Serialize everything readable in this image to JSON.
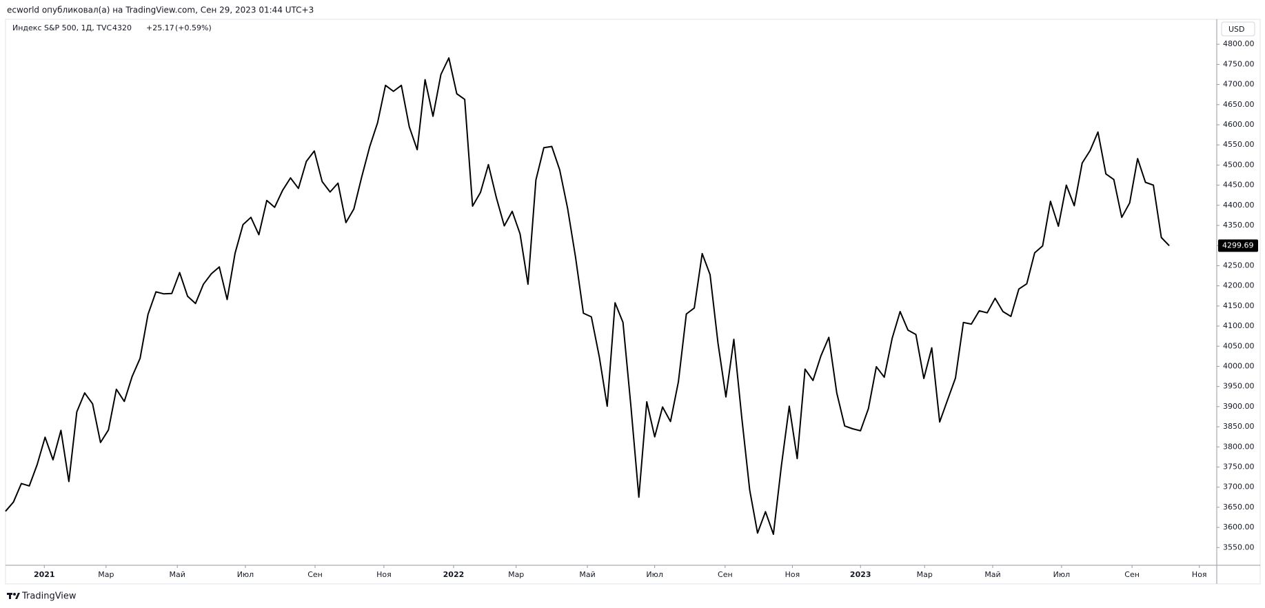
{
  "header": {
    "byline": "ecworld опубликовал(а) на TradingView.com, Сен 29, 2023 01:44 UTC+3"
  },
  "footer": {
    "brand": "TradingView"
  },
  "chart_data": {
    "type": "line",
    "currency": "USD",
    "change": "+25.17",
    "change_pct": "(+0.59%)",
    "series": [
      {
        "name": "Индекс S&P 500, 1Д, TVC",
        "color": "#000000",
        "values": [
          3640,
          3663,
          3709,
          3703,
          3756,
          3824,
          3768,
          3841,
          3714,
          3887,
          3934,
          3907,
          3811,
          3842,
          3943,
          3913,
          3975,
          4020,
          4129,
          4185,
          4180,
          4181,
          4233,
          4174,
          4156,
          4204,
          4230,
          4247,
          4166,
          4281,
          4352,
          4370,
          4327,
          4412,
          4395,
          4437,
          4468,
          4442,
          4509,
          4535,
          4459,
          4433,
          4455,
          4357,
          4391,
          4471,
          4545,
          4605,
          4698,
          4683,
          4698,
          4595,
          4538,
          4712,
          4621,
          4725,
          4766,
          4677,
          4663,
          4398,
          4432,
          4501,
          4419,
          4349,
          4385,
          4329,
          4204,
          4463,
          4543,
          4546,
          4488,
          4393,
          4272,
          4132,
          4123,
          4024,
          3901,
          4158,
          4109,
          3901,
          3675,
          3912,
          3825,
          3899,
          3863,
          3962,
          4130,
          4145,
          4280,
          4228,
          4058,
          3924,
          4067,
          3873,
          3693,
          3586,
          3639,
          3583,
          3752,
          3901,
          3771,
          3993,
          3965,
          4026,
          4072,
          3934,
          3852,
          3845,
          3840,
          3895,
          3999,
          3973,
          4070,
          4136,
          4090,
          4079,
          3970,
          4046,
          3862,
          3917,
          3971,
          4109,
          4105,
          4138,
          4133,
          4169,
          4136,
          4124,
          4192,
          4205,
          4282,
          4299,
          4410,
          4348,
          4450,
          4399,
          4505,
          4536,
          4582,
          4478,
          4464,
          4370,
          4406,
          4516,
          4457,
          4450,
          4320,
          4299.69
        ]
      }
    ],
    "xlim": [
      0,
      153
    ],
    "xticks": [
      {
        "value": 4.9,
        "label": "2021"
      },
      {
        "value": 12.7,
        "label": "Мар"
      },
      {
        "value": 21.7,
        "label": "Май"
      },
      {
        "value": 30.3,
        "label": "Июл"
      },
      {
        "value": 39.1,
        "label": "Сен"
      },
      {
        "value": 47.8,
        "label": "Ноя"
      },
      {
        "value": 56.6,
        "label": "2022"
      },
      {
        "value": 64.5,
        "label": "Мар"
      },
      {
        "value": 73.5,
        "label": "Май"
      },
      {
        "value": 82.0,
        "label": "Июл"
      },
      {
        "value": 90.9,
        "label": "Сен"
      },
      {
        "value": 99.4,
        "label": "Ноя"
      },
      {
        "value": 108.0,
        "label": "2023"
      },
      {
        "value": 116.1,
        "label": "Мар"
      },
      {
        "value": 124.7,
        "label": "Май"
      },
      {
        "value": 133.4,
        "label": "Июл"
      },
      {
        "value": 142.3,
        "label": "Сен"
      },
      {
        "value": 150.8,
        "label": "Ноя"
      }
    ],
    "ylim": [
      3506,
      4814
    ],
    "yticks": [
      {
        "value": 3550,
        "label": "3550.00"
      },
      {
        "value": 3600,
        "label": "3600.00"
      },
      {
        "value": 3650,
        "label": "3650.00"
      },
      {
        "value": 3700,
        "label": "3700.00"
      },
      {
        "value": 3750,
        "label": "3750.00"
      },
      {
        "value": 3800,
        "label": "3800.00"
      },
      {
        "value": 3850,
        "label": "3850.00"
      },
      {
        "value": 3900,
        "label": "3900.00"
      },
      {
        "value": 3950,
        "label": "3950.00"
      },
      {
        "value": 4000,
        "label": "4000.00"
      },
      {
        "value": 4050,
        "label": "4050.00"
      },
      {
        "value": 4100,
        "label": "4100.00"
      },
      {
        "value": 4150,
        "label": "4150.00"
      },
      {
        "value": 4200,
        "label": "4200.00"
      },
      {
        "value": 4250,
        "label": "4250.00"
      },
      {
        "value": 4300,
        "label": "4300.00"
      },
      {
        "value": 4350,
        "label": "4350.00"
      },
      {
        "value": 4400,
        "label": "4400.00"
      },
      {
        "value": 4450,
        "label": "4450.00"
      },
      {
        "value": 4500,
        "label": "4500.00"
      },
      {
        "value": 4550,
        "label": "4550.00"
      },
      {
        "value": 4600,
        "label": "4600.00"
      },
      {
        "value": 4650,
        "label": "4650.00"
      },
      {
        "value": 4700,
        "label": "4700.00"
      },
      {
        "value": 4750,
        "label": "4750.00"
      },
      {
        "value": 4800,
        "label": "4800.00"
      }
    ],
    "grid": false
  }
}
